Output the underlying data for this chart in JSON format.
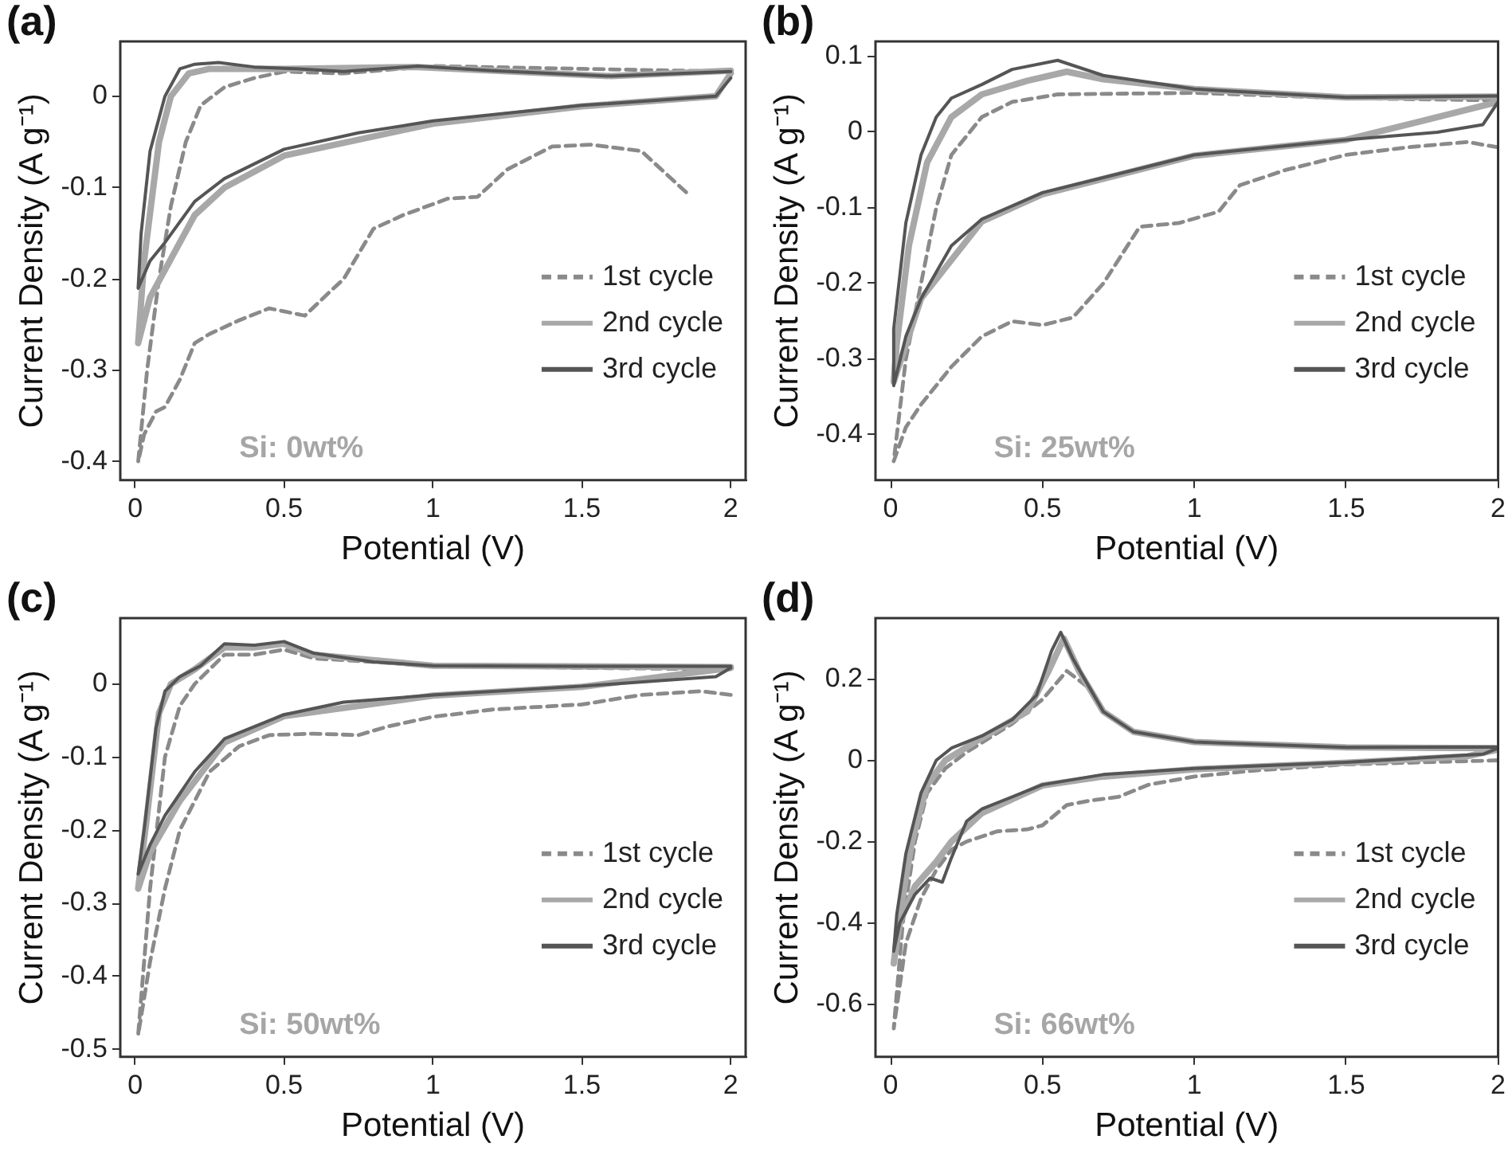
{
  "chart_data": [
    {
      "type": "line",
      "title": "(a)",
      "xlabel": "Potential (V)",
      "ylabel": "Current Density (A g⁻¹)",
      "annotations": [
        "Si: 0wt%"
      ],
      "legend": "bottom right",
      "marker": "none",
      "xlim": [
        -0.05,
        2.05
      ],
      "xticks": [
        0,
        0.5,
        1,
        1.5,
        2
      ],
      "ylim": [
        -0.42,
        0.06
      ],
      "yticks": [
        -0.4,
        -0.3,
        -0.2,
        -0.1,
        0
      ],
      "series": [
        {
          "name": "1st cycle",
          "color": "#8a8a8a",
          "line_style": "dashed",
          "x": [
            1.85,
            1.7,
            1.53,
            1.4,
            1.25,
            1.15,
            1.05,
            0.9,
            0.8,
            0.7,
            0.65,
            0.57,
            0.45,
            0.35,
            0.25,
            0.2,
            0.15,
            0.1,
            0.07,
            0.03,
            0.01,
            0.04,
            0.08,
            0.12,
            0.17,
            0.22,
            0.3,
            0.4,
            0.5,
            0.7,
            1.0,
            1.5,
            2.0
          ],
          "values": [
            -0.105,
            -0.06,
            -0.053,
            -0.055,
            -0.08,
            -0.11,
            -0.112,
            -0.13,
            -0.145,
            -0.2,
            -0.215,
            -0.24,
            -0.232,
            -0.245,
            -0.26,
            -0.27,
            -0.31,
            -0.34,
            -0.345,
            -0.37,
            -0.4,
            -0.3,
            -0.2,
            -0.12,
            -0.05,
            -0.01,
            0.01,
            0.02,
            0.027,
            0.025,
            0.033,
            0.03,
            0.027
          ]
        },
        {
          "name": "2nd cycle",
          "color": "#a8a8a8",
          "line_style": "solid",
          "x": [
            2.0,
            1.95,
            1.5,
            1.0,
            0.5,
            0.3,
            0.2,
            0.1,
            0.05,
            0.01,
            0.03,
            0.08,
            0.12,
            0.18,
            0.25,
            0.5,
            0.95,
            1.6,
            2.0
          ],
          "values": [
            0.025,
            0.0,
            -0.011,
            -0.03,
            -0.065,
            -0.1,
            -0.13,
            -0.19,
            -0.22,
            -0.27,
            -0.18,
            -0.05,
            0.0,
            0.025,
            0.03,
            0.03,
            0.032,
            0.022,
            0.028
          ]
        },
        {
          "name": "3rd cycle",
          "color": "#555555",
          "line_style": "solid",
          "x": [
            2.0,
            1.95,
            1.5,
            1.0,
            0.75,
            0.5,
            0.3,
            0.2,
            0.1,
            0.05,
            0.01,
            0.02,
            0.05,
            0.1,
            0.15,
            0.2,
            0.28,
            0.4,
            0.55,
            0.7,
            0.95,
            1.2,
            1.6,
            2.0
          ],
          "values": [
            0.02,
            0.0,
            -0.01,
            -0.027,
            -0.04,
            -0.058,
            -0.09,
            -0.115,
            -0.16,
            -0.18,
            -0.21,
            -0.15,
            -0.06,
            0.0,
            0.03,
            0.035,
            0.037,
            0.032,
            0.03,
            0.027,
            0.033,
            0.028,
            0.022,
            0.027
          ]
        }
      ]
    },
    {
      "type": "line",
      "title": "(b)",
      "xlabel": "Potential (V)",
      "ylabel": "Current Density (A g⁻¹)",
      "annotations": [
        "Si: 25wt%"
      ],
      "legend": "bottom right",
      "marker": "none",
      "xlim": [
        -0.05,
        2.0
      ],
      "xticks": [
        0,
        0.5,
        1,
        1.5,
        2
      ],
      "ylim": [
        -0.46,
        0.12
      ],
      "yticks": [
        -0.4,
        -0.3,
        -0.2,
        -0.1,
        0,
        0.1
      ],
      "series": [
        {
          "name": "1st cycle",
          "color": "#8a8a8a",
          "line_style": "dashed",
          "x": [
            2.0,
            1.9,
            1.7,
            1.5,
            1.3,
            1.15,
            1.08,
            0.95,
            0.82,
            0.7,
            0.6,
            0.5,
            0.4,
            0.3,
            0.2,
            0.1,
            0.05,
            0.01,
            0.05,
            0.1,
            0.15,
            0.2,
            0.3,
            0.4,
            0.55,
            1.0,
            1.5,
            2.0
          ],
          "values": [
            -0.02,
            -0.013,
            -0.02,
            -0.03,
            -0.05,
            -0.07,
            -0.105,
            -0.12,
            -0.125,
            -0.2,
            -0.245,
            -0.255,
            -0.25,
            -0.27,
            -0.31,
            -0.36,
            -0.39,
            -0.435,
            -0.3,
            -0.2,
            -0.1,
            -0.03,
            0.02,
            0.04,
            0.05,
            0.052,
            0.045,
            0.042
          ]
        },
        {
          "name": "2nd cycle",
          "color": "#a8a8a8",
          "line_style": "solid",
          "x": [
            2.0,
            1.5,
            1.0,
            0.5,
            0.3,
            0.1,
            0.01,
            0.02,
            0.06,
            0.12,
            0.2,
            0.3,
            0.45,
            0.58,
            0.7,
            1.0,
            1.5,
            2.0
          ],
          "values": [
            0.04,
            -0.01,
            -0.031,
            -0.082,
            -0.118,
            -0.22,
            -0.33,
            -0.28,
            -0.15,
            -0.04,
            0.02,
            0.05,
            0.068,
            0.08,
            0.07,
            0.057,
            0.046,
            0.047
          ]
        },
        {
          "name": "3rd cycle",
          "color": "#555555",
          "line_style": "solid",
          "x": [
            2.0,
            1.95,
            1.8,
            1.5,
            1.0,
            0.75,
            0.5,
            0.3,
            0.2,
            0.1,
            0.05,
            0.01,
            0.01,
            0.05,
            0.1,
            0.15,
            0.2,
            0.3,
            0.4,
            0.55,
            0.7,
            1.0,
            1.5,
            2.0
          ],
          "values": [
            0.04,
            0.01,
            0.0,
            -0.01,
            -0.03,
            -0.055,
            -0.08,
            -0.115,
            -0.15,
            -0.22,
            -0.27,
            -0.335,
            -0.26,
            -0.12,
            -0.03,
            0.02,
            0.045,
            0.063,
            0.083,
            0.095,
            0.075,
            0.057,
            0.046,
            0.048
          ]
        }
      ]
    },
    {
      "type": "line",
      "title": "(c)",
      "xlabel": "Potential (V)",
      "ylabel": "Current Density (A g⁻¹)",
      "annotations": [
        "Si: 50wt%"
      ],
      "legend": "bottom right",
      "marker": "none",
      "xlim": [
        -0.05,
        2.05
      ],
      "xticks": [
        0,
        0.5,
        1,
        1.5,
        2
      ],
      "ylim": [
        -0.51,
        0.09
      ],
      "yticks": [
        -0.5,
        -0.4,
        -0.3,
        -0.2,
        -0.1,
        0
      ],
      "series": [
        {
          "name": "1st cycle",
          "color": "#8a8a8a",
          "line_style": "dashed",
          "x": [
            2.0,
            1.9,
            1.7,
            1.5,
            1.2,
            1.0,
            0.85,
            0.75,
            0.6,
            0.45,
            0.35,
            0.25,
            0.15,
            0.1,
            0.05,
            0.01,
            0.05,
            0.1,
            0.15,
            0.2,
            0.3,
            0.4,
            0.5,
            0.6,
            1.0,
            1.5,
            2.0
          ],
          "values": [
            -0.015,
            -0.01,
            -0.015,
            -0.028,
            -0.035,
            -0.045,
            -0.058,
            -0.07,
            -0.068,
            -0.07,
            -0.085,
            -0.12,
            -0.2,
            -0.28,
            -0.38,
            -0.48,
            -0.28,
            -0.1,
            -0.03,
            0.0,
            0.04,
            0.04,
            0.047,
            0.035,
            0.025,
            0.022,
            0.02
          ]
        },
        {
          "name": "2nd cycle",
          "color": "#a8a8a8",
          "line_style": "solid",
          "x": [
            2.0,
            1.5,
            1.0,
            0.5,
            0.3,
            0.15,
            0.05,
            0.01,
            0.04,
            0.08,
            0.12,
            0.2,
            0.3,
            0.4,
            0.5,
            0.6,
            1.0,
            2.0
          ],
          "values": [
            0.022,
            -0.004,
            -0.016,
            -0.044,
            -0.08,
            -0.16,
            -0.23,
            -0.28,
            -0.18,
            -0.04,
            0.0,
            0.02,
            0.05,
            0.05,
            0.055,
            0.04,
            0.025,
            0.023
          ]
        },
        {
          "name": "3rd cycle",
          "color": "#555555",
          "line_style": "solid",
          "x": [
            2.0,
            1.95,
            1.5,
            1.0,
            0.7,
            0.5,
            0.3,
            0.2,
            0.1,
            0.05,
            0.01,
            0.03,
            0.07,
            0.1,
            0.15,
            0.22,
            0.3,
            0.4,
            0.5,
            0.6,
            0.8,
            1.0,
            1.5,
            2.0
          ],
          "values": [
            0.022,
            0.01,
            -0.003,
            -0.015,
            -0.025,
            -0.042,
            -0.075,
            -0.12,
            -0.18,
            -0.22,
            -0.26,
            -0.2,
            -0.06,
            -0.01,
            0.01,
            0.025,
            0.055,
            0.053,
            0.058,
            0.042,
            0.03,
            0.025,
            0.024,
            0.024
          ]
        }
      ]
    },
    {
      "type": "line",
      "title": "(d)",
      "xlabel": "Potential (V)",
      "ylabel": "Current Density (A g⁻¹)",
      "annotations": [
        "Si: 66wt%"
      ],
      "legend": "bottom right",
      "marker": "none",
      "xlim": [
        -0.05,
        2.0
      ],
      "xticks": [
        0,
        0.5,
        1,
        1.5,
        2
      ],
      "ylim": [
        -0.73,
        0.35
      ],
      "yticks": [
        -0.6,
        -0.4,
        -0.2,
        0,
        0.2
      ],
      "series": [
        {
          "name": "1st cycle",
          "color": "#8a8a8a",
          "line_style": "dashed",
          "x": [
            2.0,
            1.5,
            1.2,
            1.0,
            0.85,
            0.75,
            0.65,
            0.58,
            0.5,
            0.45,
            0.35,
            0.25,
            0.2,
            0.15,
            0.1,
            0.05,
            0.01,
            0.04,
            0.08,
            0.12,
            0.18,
            0.25,
            0.4,
            0.5,
            0.58,
            0.65,
            0.7,
            0.8,
            1.0,
            1.5,
            2.0
          ],
          "values": [
            0.0,
            -0.01,
            -0.025,
            -0.04,
            -0.06,
            -0.09,
            -0.1,
            -0.11,
            -0.16,
            -0.17,
            -0.175,
            -0.2,
            -0.22,
            -0.27,
            -0.34,
            -0.45,
            -0.66,
            -0.4,
            -0.2,
            -0.08,
            -0.02,
            0.02,
            0.09,
            0.15,
            0.22,
            0.18,
            0.12,
            0.07,
            0.045,
            0.03,
            0.028
          ]
        },
        {
          "name": "2nd cycle",
          "color": "#a9a9a9",
          "line_style": "solid",
          "x": [
            1.99,
            1.9,
            1.5,
            1.0,
            0.7,
            0.5,
            0.3,
            0.2,
            0.15,
            0.08,
            0.03,
            0.01,
            0.03,
            0.07,
            0.12,
            0.18,
            0.3,
            0.45,
            0.52,
            0.57,
            0.62,
            0.7,
            0.8,
            1.0,
            1.5,
            1.99
          ],
          "values": [
            0.025,
            0.01,
            -0.006,
            -0.022,
            -0.04,
            -0.062,
            -0.13,
            -0.2,
            -0.25,
            -0.31,
            -0.4,
            -0.5,
            -0.38,
            -0.2,
            -0.06,
            0.0,
            0.055,
            0.12,
            0.22,
            0.3,
            0.22,
            0.12,
            0.07,
            0.045,
            0.032,
            0.03
          ]
        },
        {
          "name": "3rd cycle",
          "color": "#555555",
          "line_style": "solid",
          "x": [
            2.0,
            1.95,
            1.5,
            1.0,
            0.7,
            0.5,
            0.3,
            0.25,
            0.2,
            0.17,
            0.13,
            0.08,
            0.03,
            0.01,
            0.02,
            0.05,
            0.1,
            0.15,
            0.2,
            0.3,
            0.4,
            0.48,
            0.53,
            0.56,
            0.6,
            0.7,
            0.8,
            1.0,
            1.5,
            2.0
          ],
          "values": [
            0.03,
            0.015,
            -0.005,
            -0.02,
            -0.035,
            -0.06,
            -0.12,
            -0.15,
            -0.24,
            -0.3,
            -0.29,
            -0.33,
            -0.4,
            -0.47,
            -0.38,
            -0.23,
            -0.08,
            0.0,
            0.03,
            0.06,
            0.1,
            0.16,
            0.27,
            0.315,
            0.25,
            0.12,
            0.07,
            0.045,
            0.032,
            0.033
          ]
        }
      ]
    }
  ]
}
